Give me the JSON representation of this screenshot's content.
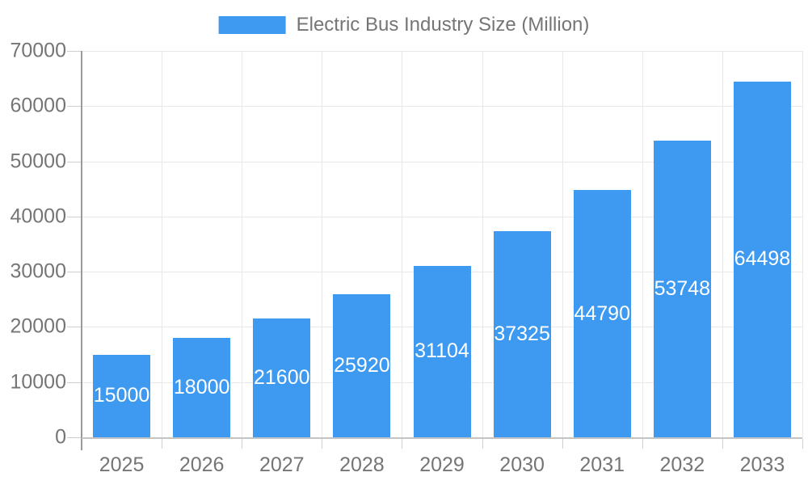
{
  "chart_data": {
    "type": "bar",
    "legend": "Electric Bus Industry Size (Million)",
    "categories": [
      "2025",
      "2026",
      "2027",
      "2028",
      "2029",
      "2030",
      "2031",
      "2032",
      "2033"
    ],
    "values": [
      15000,
      18000,
      21600,
      25920,
      31104,
      37325,
      44790,
      53748,
      64498
    ],
    "value_labels": [
      "15000",
      "18000",
      "21600",
      "25920",
      "31104",
      "37325",
      "44790",
      "53748",
      "64498"
    ],
    "ytick_labels": [
      "0",
      "10000",
      "20000",
      "30000",
      "40000",
      "50000",
      "60000",
      "70000"
    ],
    "ylim": [
      0,
      70000
    ],
    "ytick_interval": 10000,
    "grid": "horizontal-and-vertical",
    "legend_position": "top-center",
    "value_label_position": "inside-center",
    "colors": {
      "bar": "#3d9af0",
      "bar_value_text": "#ffffff",
      "axis_text": "#757575",
      "gridline": "#e8e8e8",
      "y_axis_line": "#9a9a9a",
      "x_axis_line": "#c4c4c4",
      "tick_mark": "#cfcfcf",
      "background": "#ffffff"
    }
  }
}
